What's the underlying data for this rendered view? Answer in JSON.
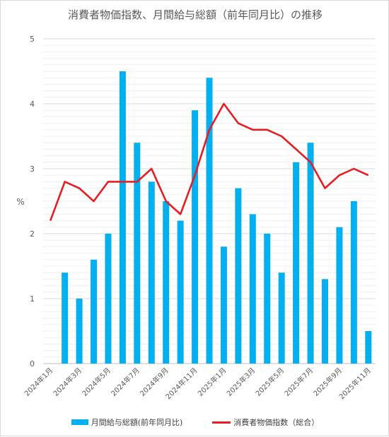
{
  "chart_data": {
    "type": "bar+line",
    "title": "消費者物価指数、月間給与総額（前年同月比）の推移",
    "ylabel": "%",
    "ylim": [
      0,
      5
    ],
    "yticks": [
      "0",
      "1",
      "2",
      "3",
      "4",
      "5"
    ],
    "grid": true,
    "legend_position": "bottom",
    "categories": [
      "2024年1月",
      "2024年2月",
      "2024年3月",
      "2024年4月",
      "2024年5月",
      "2024年6月",
      "2024年7月",
      "2024年8月",
      "2024年9月",
      "2024年10月",
      "2024年11月",
      "2024年12月",
      "2025年1月",
      "2025年2月",
      "2025年3月",
      "2025年4月",
      "2025年5月",
      "2025年6月",
      "2025年7月",
      "2025年8月",
      "2025年9月",
      "2025年10月",
      "2025年11月"
    ],
    "tick_labels": [
      "2024年1月",
      "",
      "2024年3月",
      "",
      "2024年5月",
      "",
      "2024年7月",
      "",
      "2024年9月",
      "",
      "2024年11月",
      "",
      "2025年1月",
      "",
      "2025年3月",
      "",
      "2025年5月",
      "",
      "2025年7月",
      "",
      "2025年9月",
      "",
      "2025年11月"
    ],
    "series": [
      {
        "name": "月間給与総額(前年同月比)",
        "type": "bar",
        "color": "#00b0f0",
        "values": [
          null,
          1.4,
          1.0,
          1.6,
          2.0,
          4.5,
          3.4,
          2.8,
          2.5,
          2.2,
          3.9,
          4.4,
          1.8,
          2.7,
          2.3,
          2.0,
          1.4,
          3.1,
          3.4,
          1.3,
          2.1,
          2.5,
          0.5
        ]
      },
      {
        "name": "消費者物価指数（総合）",
        "type": "line",
        "color": "#e81c23",
        "values": [
          2.2,
          2.8,
          2.7,
          2.5,
          2.8,
          2.8,
          2.8,
          3.0,
          2.5,
          2.3,
          2.9,
          3.6,
          4.0,
          3.7,
          3.6,
          3.6,
          3.5,
          3.3,
          3.1,
          2.7,
          2.9,
          3.0,
          2.9
        ]
      }
    ]
  }
}
